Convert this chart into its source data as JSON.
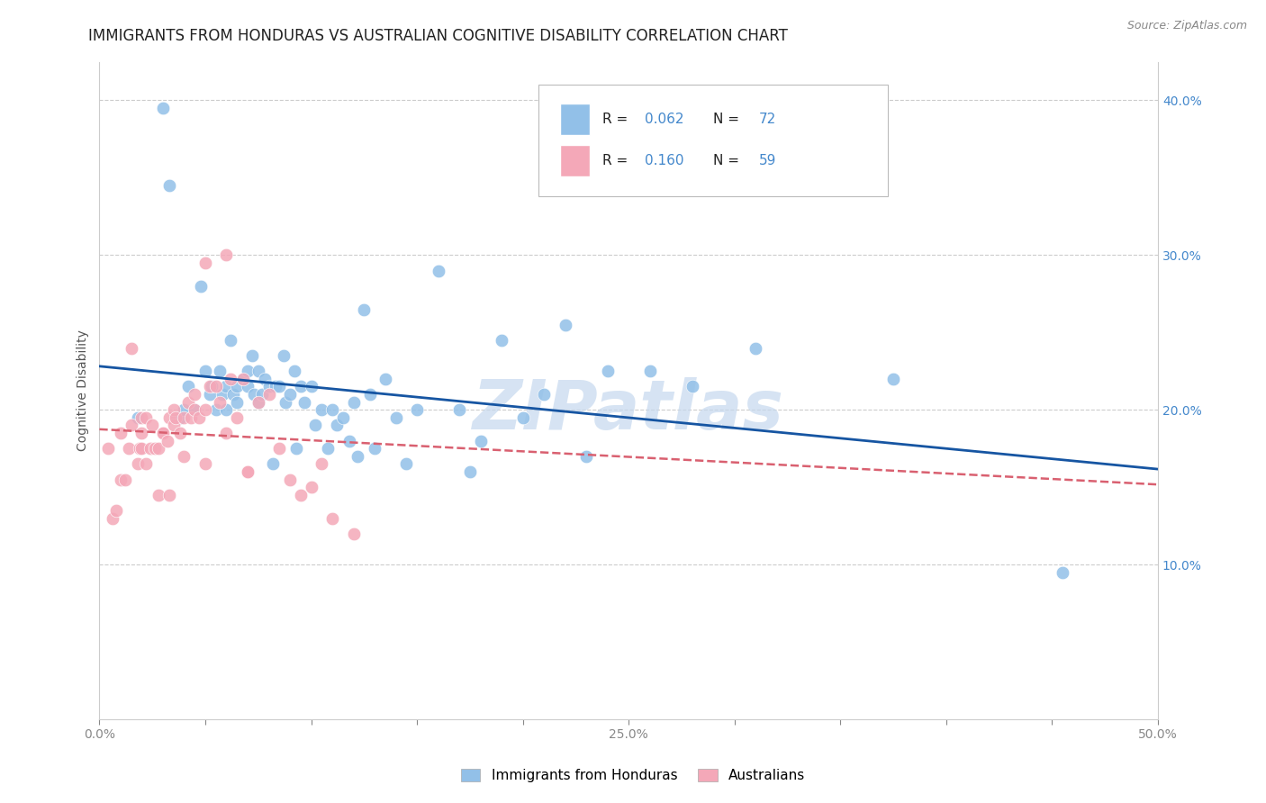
{
  "title": "IMMIGRANTS FROM HONDURAS VS AUSTRALIAN COGNITIVE DISABILITY CORRELATION CHART",
  "source": "Source: ZipAtlas.com",
  "ylabel": "Cognitive Disability",
  "xlim": [
    0.0,
    0.5
  ],
  "ylim": [
    0.0,
    0.425
  ],
  "xticks": [
    0.0,
    0.05,
    0.1,
    0.15,
    0.2,
    0.25,
    0.3,
    0.35,
    0.4,
    0.45,
    0.5
  ],
  "xticklabels": [
    "0.0%",
    "",
    "",
    "",
    "",
    "25.0%",
    "",
    "",
    "",
    "",
    "50.0%"
  ],
  "yticks_right": [
    0.1,
    0.2,
    0.3,
    0.4
  ],
  "yticklabels_right": [
    "10.0%",
    "20.0%",
    "30.0%",
    "40.0%"
  ],
  "color_blue": "#92c0e8",
  "color_pink": "#f4a8b8",
  "line_blue": "#1655a2",
  "line_pink": "#d96070",
  "legend_label1": "Immigrants from Honduras",
  "legend_label2": "Australians",
  "watermark": "ZIPatlas",
  "blue_scatter_x": [
    0.018,
    0.03,
    0.033,
    0.038,
    0.04,
    0.042,
    0.045,
    0.048,
    0.05,
    0.052,
    0.053,
    0.055,
    0.057,
    0.058,
    0.06,
    0.06,
    0.062,
    0.063,
    0.065,
    0.065,
    0.068,
    0.07,
    0.07,
    0.072,
    0.073,
    0.075,
    0.075,
    0.077,
    0.078,
    0.08,
    0.082,
    0.083,
    0.085,
    0.087,
    0.088,
    0.09,
    0.092,
    0.093,
    0.095,
    0.097,
    0.1,
    0.102,
    0.105,
    0.108,
    0.11,
    0.112,
    0.115,
    0.118,
    0.12,
    0.122,
    0.125,
    0.128,
    0.13,
    0.135,
    0.14,
    0.145,
    0.15,
    0.16,
    0.17,
    0.175,
    0.18,
    0.19,
    0.2,
    0.21,
    0.22,
    0.23,
    0.24,
    0.26,
    0.28,
    0.31,
    0.375,
    0.455
  ],
  "blue_scatter_y": [
    0.195,
    0.395,
    0.345,
    0.195,
    0.2,
    0.215,
    0.2,
    0.28,
    0.225,
    0.21,
    0.215,
    0.2,
    0.225,
    0.21,
    0.2,
    0.215,
    0.245,
    0.21,
    0.215,
    0.205,
    0.22,
    0.215,
    0.225,
    0.235,
    0.21,
    0.205,
    0.225,
    0.21,
    0.22,
    0.215,
    0.165,
    0.215,
    0.215,
    0.235,
    0.205,
    0.21,
    0.225,
    0.175,
    0.215,
    0.205,
    0.215,
    0.19,
    0.2,
    0.175,
    0.2,
    0.19,
    0.195,
    0.18,
    0.205,
    0.17,
    0.265,
    0.21,
    0.175,
    0.22,
    0.195,
    0.165,
    0.2,
    0.29,
    0.2,
    0.16,
    0.18,
    0.245,
    0.195,
    0.21,
    0.255,
    0.17,
    0.225,
    0.225,
    0.215,
    0.24,
    0.22,
    0.095
  ],
  "pink_scatter_x": [
    0.004,
    0.006,
    0.008,
    0.01,
    0.01,
    0.012,
    0.014,
    0.015,
    0.015,
    0.018,
    0.019,
    0.02,
    0.02,
    0.02,
    0.022,
    0.022,
    0.024,
    0.025,
    0.026,
    0.028,
    0.028,
    0.03,
    0.03,
    0.032,
    0.033,
    0.033,
    0.035,
    0.035,
    0.036,
    0.038,
    0.04,
    0.04,
    0.042,
    0.043,
    0.045,
    0.045,
    0.047,
    0.05,
    0.05,
    0.052,
    0.055,
    0.057,
    0.06,
    0.062,
    0.065,
    0.068,
    0.07,
    0.075,
    0.08,
    0.085,
    0.09,
    0.095,
    0.1,
    0.105,
    0.11,
    0.12,
    0.05,
    0.06,
    0.07
  ],
  "pink_scatter_y": [
    0.175,
    0.13,
    0.135,
    0.155,
    0.185,
    0.155,
    0.175,
    0.19,
    0.24,
    0.165,
    0.175,
    0.175,
    0.185,
    0.195,
    0.195,
    0.165,
    0.175,
    0.19,
    0.175,
    0.175,
    0.145,
    0.185,
    0.185,
    0.18,
    0.195,
    0.145,
    0.19,
    0.2,
    0.195,
    0.185,
    0.195,
    0.17,
    0.205,
    0.195,
    0.2,
    0.21,
    0.195,
    0.2,
    0.165,
    0.215,
    0.215,
    0.205,
    0.185,
    0.22,
    0.195,
    0.22,
    0.16,
    0.205,
    0.21,
    0.175,
    0.155,
    0.145,
    0.15,
    0.165,
    0.13,
    0.12,
    0.295,
    0.3,
    0.16
  ],
  "grid_color": "#cccccc",
  "background_color": "#ffffff",
  "title_fontsize": 12,
  "axis_label_fontsize": 10,
  "tick_fontsize": 10,
  "watermark_color": "#c5d8ee",
  "watermark_fontsize": 55,
  "right_tick_color": "#4488cc"
}
